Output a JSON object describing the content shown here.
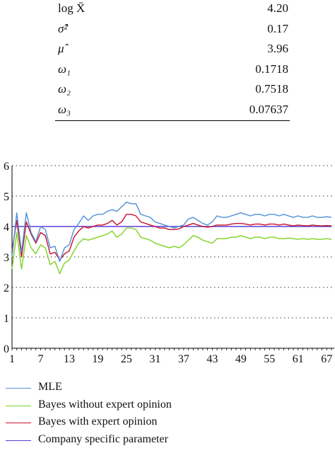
{
  "params": [
    {
      "symbol": "log X̄",
      "value": "4.20"
    },
    {
      "symbol": "σ̂²",
      "value": "0.17"
    },
    {
      "symbol": "μ̂",
      "value": "3.96"
    },
    {
      "symbol": "ω₁",
      "value": "0.1718"
    },
    {
      "symbol": "ω₂",
      "value": "0.7518"
    },
    {
      "symbol": "ω₃",
      "value": "0.07637"
    }
  ],
  "legend": [
    {
      "label": "MLE",
      "color": "#4f8fd6"
    },
    {
      "label": "Bayes without expert opinion",
      "color": "#7ed321"
    },
    {
      "label": "Bayes with expert opinion",
      "color": "#c8102e"
    },
    {
      "label": "Company specific parameter",
      "color": "#5b3fd6"
    }
  ],
  "chart_data": {
    "type": "line",
    "x": [
      1,
      2,
      3,
      4,
      5,
      6,
      7,
      8,
      9,
      10,
      11,
      12,
      13,
      14,
      15,
      16,
      17,
      18,
      19,
      20,
      21,
      22,
      23,
      24,
      25,
      26,
      27,
      28,
      29,
      30,
      31,
      32,
      33,
      34,
      35,
      36,
      37,
      38,
      39,
      40,
      41,
      42,
      43,
      44,
      45,
      46,
      47,
      48,
      49,
      50,
      51,
      52,
      53,
      54,
      55,
      56,
      57,
      58,
      59,
      60,
      61,
      62,
      63,
      64,
      65,
      66,
      67,
      68
    ],
    "xticks": [
      "1",
      "7",
      "13",
      "19",
      "25",
      "31",
      "37",
      "43",
      "49",
      "55",
      "61",
      "67"
    ],
    "yticks": [
      "0",
      "1",
      "2",
      "3",
      "4",
      "5",
      "6"
    ],
    "ylim": [
      0,
      6
    ],
    "grid": "dotted horizontal",
    "series": [
      {
        "name": "MLE",
        "color": "#4f8fd6",
        "values": [
          3.0,
          4.45,
          3.15,
          4.45,
          3.8,
          3.5,
          4.0,
          3.9,
          3.3,
          3.35,
          2.85,
          3.3,
          3.4,
          3.9,
          4.1,
          4.35,
          4.2,
          4.35,
          4.4,
          4.4,
          4.5,
          4.55,
          4.5,
          4.65,
          4.8,
          4.75,
          4.75,
          4.4,
          4.35,
          4.3,
          4.15,
          4.1,
          4.05,
          4.0,
          3.95,
          4.0,
          4.05,
          4.25,
          4.3,
          4.2,
          4.1,
          4.05,
          4.15,
          4.35,
          4.3,
          4.3,
          4.35,
          4.4,
          4.45,
          4.4,
          4.35,
          4.4,
          4.4,
          4.35,
          4.4,
          4.4,
          4.35,
          4.4,
          4.35,
          4.3,
          4.35,
          4.3,
          4.3,
          4.35,
          4.3,
          4.3,
          4.32,
          4.3
        ]
      },
      {
        "name": "Bayes without expert opinion",
        "color": "#7ed321",
        "values": [
          2.6,
          3.8,
          2.6,
          3.7,
          3.3,
          3.1,
          3.4,
          3.3,
          2.75,
          2.85,
          2.45,
          2.8,
          2.9,
          3.2,
          3.45,
          3.6,
          3.55,
          3.6,
          3.65,
          3.7,
          3.75,
          3.85,
          3.65,
          3.75,
          3.95,
          3.95,
          3.9,
          3.65,
          3.6,
          3.55,
          3.45,
          3.4,
          3.35,
          3.3,
          3.35,
          3.3,
          3.4,
          3.55,
          3.7,
          3.65,
          3.55,
          3.5,
          3.45,
          3.6,
          3.6,
          3.6,
          3.65,
          3.65,
          3.7,
          3.65,
          3.6,
          3.65,
          3.65,
          3.6,
          3.65,
          3.65,
          3.6,
          3.6,
          3.62,
          3.6,
          3.58,
          3.6,
          3.58,
          3.6,
          3.58,
          3.58,
          3.6,
          3.58
        ]
      },
      {
        "name": "Bayes with expert opinion",
        "color": "#c8102e",
        "values": [
          3.2,
          4.2,
          3.0,
          4.15,
          3.75,
          3.45,
          3.8,
          3.7,
          3.1,
          3.15,
          2.9,
          3.1,
          3.2,
          3.65,
          3.85,
          4.0,
          3.95,
          4.0,
          4.05,
          4.05,
          4.1,
          4.2,
          4.05,
          4.15,
          4.4,
          4.4,
          4.35,
          4.15,
          4.1,
          4.05,
          4.0,
          3.95,
          3.95,
          3.9,
          3.9,
          3.92,
          4.0,
          4.05,
          4.1,
          4.05,
          4.0,
          3.98,
          4.0,
          4.05,
          4.05,
          4.05,
          4.08,
          4.1,
          4.1,
          4.08,
          4.05,
          4.08,
          4.08,
          4.05,
          4.08,
          4.08,
          4.05,
          4.08,
          4.05,
          4.02,
          4.05,
          4.03,
          4.02,
          4.05,
          4.03,
          4.02,
          4.03,
          4.02
        ]
      },
      {
        "name": "Company specific parameter",
        "color": "#5b3fd6",
        "values": [
          4.0,
          4.0,
          4.0,
          4.0,
          4.0,
          4.0,
          4.0,
          4.0,
          4.0,
          4.0,
          4.0,
          4.0,
          4.0,
          4.0,
          4.0,
          4.0,
          4.0,
          4.0,
          4.0,
          4.0,
          4.0,
          4.0,
          4.0,
          4.0,
          4.0,
          4.0,
          4.0,
          4.0,
          4.0,
          4.0,
          4.0,
          4.0,
          4.0,
          4.0,
          4.0,
          4.0,
          4.0,
          4.0,
          4.0,
          4.0,
          4.0,
          4.0,
          4.0,
          4.0,
          4.0,
          4.0,
          4.0,
          4.0,
          4.0,
          4.0,
          4.0,
          4.0,
          4.0,
          4.0,
          4.0,
          4.0,
          4.0,
          4.0,
          4.0,
          4.0,
          4.0,
          4.0,
          4.0,
          4.0,
          4.0,
          4.0,
          4.0,
          4.0
        ]
      }
    ]
  }
}
